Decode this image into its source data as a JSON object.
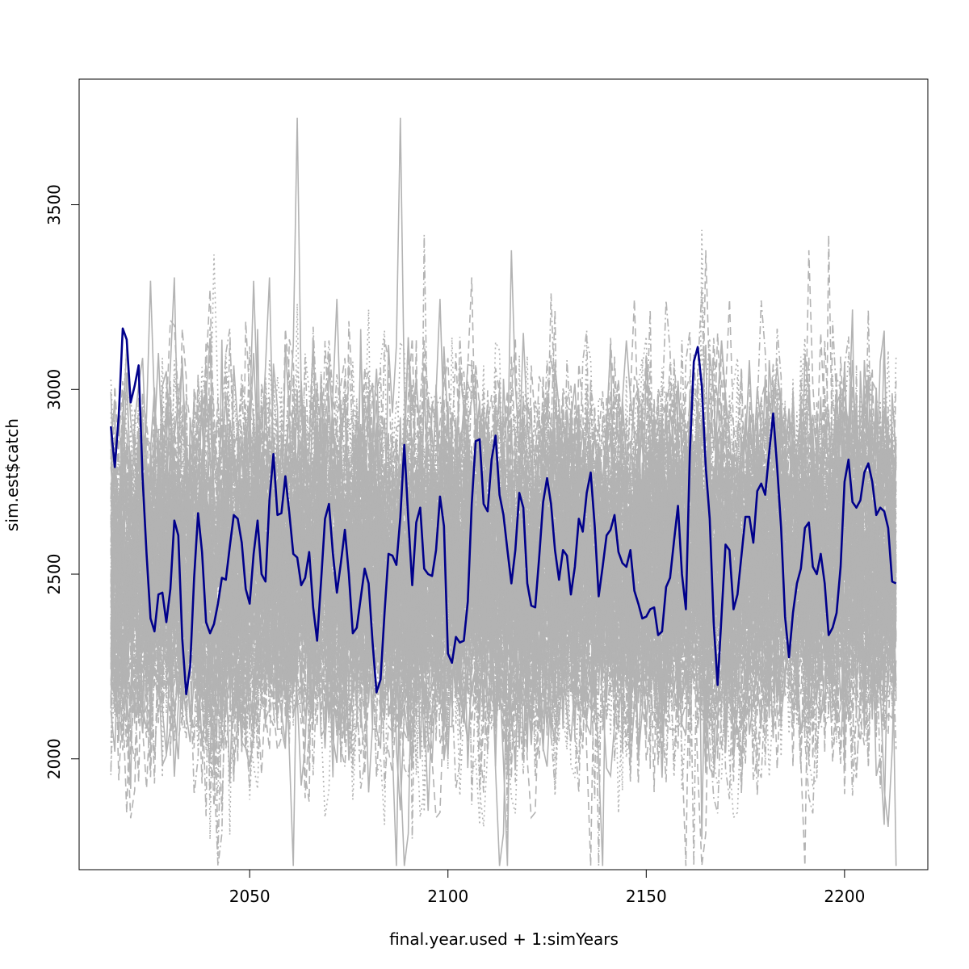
{
  "chart_data": {
    "type": "line",
    "title": "",
    "xlabel": "final.year.used + 1:simYears",
    "ylabel": "sim.est$catch",
    "xlim": [
      2007,
      2221
    ],
    "ylim": [
      1700,
      3840
    ],
    "x_ticks": [
      2050,
      2100,
      2150,
      2200
    ],
    "y_ticks": [
      2000,
      2500,
      3000,
      3500
    ],
    "x_tick_labels": [
      "2050",
      "2100",
      "2150",
      "2200"
    ],
    "y_tick_labels": [
      "2000",
      "2500",
      "3000",
      "3500"
    ],
    "grid": false,
    "legend": "none",
    "x_start": 2015,
    "x_end": 2213,
    "background_series": {
      "count": 100,
      "color": "#b3b3b3",
      "line_styles": [
        "solid",
        "dashed",
        "dotted",
        "dotdash"
      ],
      "typical_range": [
        2150,
        2950
      ],
      "extreme_range": [
        1710,
        3770
      ]
    },
    "highlight_series": {
      "color": "#00008b",
      "x": [
        2015,
        2016,
        2017,
        2018,
        2019,
        2020,
        2021,
        2022,
        2023,
        2024,
        2025,
        2026,
        2027,
        2028,
        2029,
        2030,
        2031,
        2032,
        2033,
        2034,
        2035,
        2036,
        2037,
        2038,
        2039,
        2040,
        2041,
        2042,
        2043,
        2044,
        2045,
        2046,
        2047,
        2048,
        2049,
        2050,
        2051,
        2052,
        2053,
        2054,
        2055,
        2056,
        2057,
        2058,
        2059,
        2060,
        2061,
        2062,
        2063,
        2064,
        2065,
        2066,
        2067,
        2068,
        2069,
        2070,
        2071,
        2072,
        2073,
        2074,
        2075,
        2076,
        2077,
        2078,
        2079,
        2080,
        2081,
        2082,
        2083,
        2084,
        2085,
        2086,
        2087,
        2088,
        2089,
        2090,
        2091,
        2092,
        2093,
        2094,
        2095,
        2096,
        2097,
        2098,
        2099,
        2100,
        2101,
        2102,
        2103,
        2104,
        2105,
        2106,
        2107,
        2108,
        2109,
        2110,
        2111,
        2112,
        2113,
        2114,
        2115,
        2116,
        2117,
        2118,
        2119,
        2120,
        2121,
        2122,
        2123,
        2124,
        2125,
        2126,
        2127,
        2128,
        2129,
        2130,
        2131,
        2132,
        2133,
        2134,
        2135,
        2136,
        2137,
        2138,
        2139,
        2140,
        2141,
        2142,
        2143,
        2144,
        2145,
        2146,
        2147,
        2148,
        2149,
        2150,
        2151,
        2152,
        2153,
        2154,
        2155,
        2156,
        2157,
        2158,
        2159,
        2160,
        2161,
        2162,
        2163,
        2164,
        2165,
        2166,
        2167,
        2168,
        2169,
        2170,
        2171,
        2172,
        2173,
        2174,
        2175,
        2176,
        2177,
        2178,
        2179,
        2180,
        2181,
        2182,
        2183,
        2184,
        2185,
        2186,
        2187,
        2188,
        2189,
        2190,
        2191,
        2192,
        2193,
        2194,
        2195,
        2196,
        2197,
        2198,
        2199,
        2200,
        2201,
        2202,
        2203,
        2204,
        2205,
        2206,
        2207,
        2208,
        2209,
        2210,
        2211,
        2212,
        2213
      ],
      "y": [
        2900,
        2790,
        2930,
        3165,
        3135,
        2965,
        3010,
        3065,
        2760,
        2555,
        2380,
        2345,
        2445,
        2450,
        2370,
        2460,
        2645,
        2605,
        2325,
        2175,
        2250,
        2490,
        2665,
        2560,
        2370,
        2340,
        2365,
        2420,
        2490,
        2485,
        2575,
        2660,
        2650,
        2585,
        2460,
        2420,
        2555,
        2645,
        2500,
        2480,
        2700,
        2825,
        2660,
        2665,
        2765,
        2665,
        2555,
        2545,
        2470,
        2490,
        2560,
        2410,
        2320,
        2480,
        2650,
        2690,
        2555,
        2450,
        2530,
        2620,
        2500,
        2340,
        2355,
        2435,
        2515,
        2475,
        2315,
        2180,
        2215,
        2395,
        2555,
        2550,
        2525,
        2655,
        2850,
        2650,
        2470,
        2640,
        2680,
        2515,
        2500,
        2495,
        2565,
        2710,
        2630,
        2285,
        2260,
        2330,
        2315,
        2320,
        2425,
        2690,
        2860,
        2865,
        2690,
        2670,
        2810,
        2875,
        2715,
        2660,
        2565,
        2475,
        2565,
        2720,
        2680,
        2475,
        2415,
        2410,
        2545,
        2695,
        2760,
        2690,
        2565,
        2485,
        2565,
        2550,
        2445,
        2520,
        2650,
        2615,
        2720,
        2775,
        2630,
        2440,
        2520,
        2605,
        2620,
        2660,
        2560,
        2530,
        2520,
        2565,
        2455,
        2420,
        2380,
        2385,
        2405,
        2410,
        2335,
        2345,
        2465,
        2490,
        2590,
        2685,
        2500,
        2405,
        2830,
        3075,
        3115,
        3010,
        2790,
        2650,
        2370,
        2200,
        2390,
        2580,
        2565,
        2405,
        2445,
        2550,
        2655,
        2655,
        2585,
        2725,
        2745,
        2715,
        2830,
        2935,
        2790,
        2625,
        2385,
        2275,
        2395,
        2475,
        2515,
        2625,
        2640,
        2520,
        2500,
        2555,
        2475,
        2335,
        2355,
        2395,
        2520,
        2750,
        2810,
        2695,
        2680,
        2700,
        2775,
        2800,
        2750,
        2660,
        2680,
        2670,
        2625,
        2480,
        2475
      ]
    }
  }
}
